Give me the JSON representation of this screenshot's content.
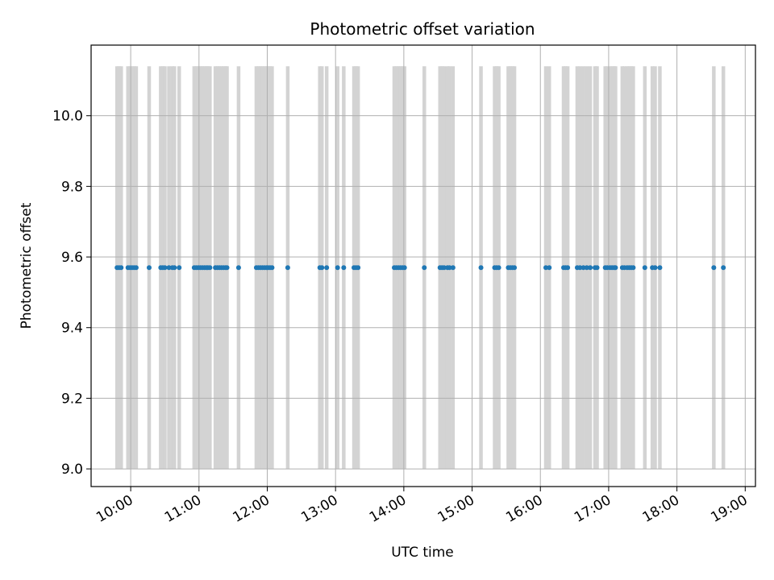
{
  "chart_data": {
    "type": "scatter",
    "title": "Photometric offset variation",
    "xlabel": "UTC time",
    "ylabel": "Photometric offset",
    "x_unit": "hours UTC",
    "xlim": [
      9.42,
      19.15
    ],
    "ylim": [
      8.95,
      10.2
    ],
    "x_ticks": [
      {
        "value": 10,
        "label": "10:00"
      },
      {
        "value": 11,
        "label": "11:00"
      },
      {
        "value": 12,
        "label": "12:00"
      },
      {
        "value": 13,
        "label": "13:00"
      },
      {
        "value": 14,
        "label": "14:00"
      },
      {
        "value": 15,
        "label": "15:00"
      },
      {
        "value": 16,
        "label": "16:00"
      },
      {
        "value": 17,
        "label": "17:00"
      },
      {
        "value": 18,
        "label": "18:00"
      },
      {
        "value": 19,
        "label": "19:00"
      }
    ],
    "y_ticks": [
      {
        "value": 9.0,
        "label": "9.0"
      },
      {
        "value": 9.2,
        "label": "9.2"
      },
      {
        "value": 9.4,
        "label": "9.4"
      },
      {
        "value": 9.6,
        "label": "9.6"
      },
      {
        "value": 9.8,
        "label": "9.8"
      },
      {
        "value": 10.0,
        "label": "10.0"
      }
    ],
    "grid": true,
    "colors": {
      "points": "#1f77b4",
      "bars": "#d3d3d3",
      "grid": "#b0b0b0"
    },
    "vertical_bars": {
      "y_range": [
        9.0,
        10.14
      ],
      "x": [
        9.8,
        9.83,
        9.86,
        9.96,
        9.99,
        10.02,
        10.05,
        10.08,
        10.27,
        10.44,
        10.47,
        10.5,
        10.56,
        10.61,
        10.64,
        10.71,
        10.93,
        10.96,
        10.99,
        11.02,
        11.05,
        11.08,
        11.11,
        11.13,
        11.16,
        11.24,
        11.27,
        11.3,
        11.33,
        11.36,
        11.39,
        11.41,
        11.58,
        11.84,
        11.87,
        11.9,
        11.93,
        11.96,
        11.99,
        12.01,
        12.04,
        12.07,
        12.3,
        12.77,
        12.8,
        12.87,
        13.03,
        13.12,
        13.27,
        13.3,
        13.33,
        13.86,
        13.89,
        13.92,
        13.95,
        13.98,
        14.01,
        14.3,
        14.53,
        14.56,
        14.59,
        14.64,
        14.67,
        14.72,
        15.13,
        15.33,
        15.36,
        15.39,
        15.53,
        15.56,
        15.59,
        15.62,
        16.08,
        16.13,
        16.34,
        16.37,
        16.4,
        16.54,
        16.58,
        16.63,
        16.68,
        16.73,
        16.8,
        16.83,
        16.95,
        16.98,
        17.02,
        17.05,
        17.08,
        17.1,
        17.2,
        17.23,
        17.27,
        17.3,
        17.33,
        17.36,
        17.53,
        17.64,
        17.68,
        17.75,
        18.54,
        18.68
      ]
    },
    "series": [
      {
        "y": 9.57,
        "x": [
          9.8,
          9.83,
          9.86,
          9.96,
          9.99,
          10.02,
          10.05,
          10.08,
          10.27,
          10.44,
          10.47,
          10.5,
          10.56,
          10.61,
          10.64,
          10.71,
          10.93,
          10.96,
          10.99,
          11.02,
          11.05,
          11.08,
          11.11,
          11.13,
          11.16,
          11.24,
          11.27,
          11.3,
          11.33,
          11.36,
          11.39,
          11.41,
          11.58,
          11.84,
          11.87,
          11.9,
          11.93,
          11.96,
          11.99,
          12.01,
          12.04,
          12.07,
          12.3,
          12.77,
          12.8,
          12.87,
          13.03,
          13.12,
          13.27,
          13.3,
          13.33,
          13.86,
          13.89,
          13.92,
          13.95,
          13.98,
          14.01,
          14.3,
          14.53,
          14.56,
          14.59,
          14.64,
          14.67,
          14.72,
          15.13,
          15.33,
          15.36,
          15.39,
          15.53,
          15.56,
          15.59,
          15.62,
          16.08,
          16.13,
          16.34,
          16.37,
          16.4,
          16.54,
          16.58,
          16.63,
          16.68,
          16.73,
          16.8,
          16.83,
          16.95,
          16.98,
          17.02,
          17.05,
          17.08,
          17.1,
          17.2,
          17.23,
          17.27,
          17.3,
          17.33,
          17.36,
          17.53,
          17.64,
          17.68,
          17.75,
          18.54,
          18.68
        ]
      }
    ]
  }
}
